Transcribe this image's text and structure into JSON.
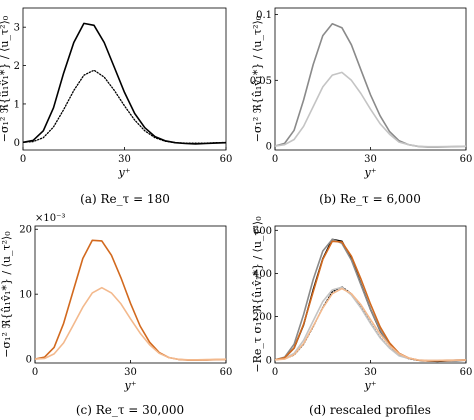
{
  "figure": {
    "x_axis_label": "y⁺",
    "y_axis_label_plain": "−σ₁² ℜ{û₁v̂₁*} / ⟨u_τ²⟩₀",
    "y_axis_label_scaled": "−Re_τ σ₁² ℜ{û₁v̂₁*} / ⟨u_τ²⟩₀"
  },
  "chart_data": [
    {
      "panel": "a",
      "type": "line",
      "caption": "(a) Re_τ = 180",
      "xlabel": "y⁺",
      "ylabel": "−σ₁² ℜ{û₁v̂₁*} / ⟨u_τ²⟩₀",
      "xlim": [
        0,
        60
      ],
      "ylim": [
        -0.2,
        3.5
      ],
      "xticks": [
        0,
        30,
        60
      ],
      "yticks": [
        0,
        1,
        2,
        3
      ],
      "scale_note": "",
      "series": [
        {
          "style": "solid",
          "color": "#000000",
          "x": [
            0,
            3,
            6,
            9,
            12,
            15,
            18,
            21,
            24,
            27,
            30,
            33,
            36,
            39,
            42,
            45,
            48,
            51,
            54,
            57,
            60
          ],
          "y": [
            0,
            0.05,
            0.3,
            0.9,
            1.8,
            2.6,
            3.1,
            3.05,
            2.6,
            1.95,
            1.3,
            0.75,
            0.38,
            0.15,
            0.04,
            -0.01,
            -0.03,
            -0.04,
            -0.03,
            -0.02,
            -0.01
          ]
        },
        {
          "style": "dotted",
          "color": "#000000",
          "x": [
            0,
            3,
            6,
            9,
            12,
            15,
            18,
            21,
            24,
            27,
            30,
            33,
            36,
            39,
            42,
            45,
            48,
            51,
            54,
            57,
            60
          ],
          "y": [
            0,
            0.02,
            0.12,
            0.4,
            0.85,
            1.35,
            1.75,
            1.88,
            1.7,
            1.35,
            0.95,
            0.58,
            0.3,
            0.12,
            0.03,
            -0.01,
            -0.02,
            -0.02,
            -0.02,
            -0.01,
            -0.005
          ]
        }
      ]
    },
    {
      "panel": "b",
      "type": "line",
      "caption": "(b) Re_τ = 6,000",
      "xlabel": "y⁺",
      "ylabel": "−σ₁² ℜ{û₁v̂₁*} / ⟨u_τ²⟩₀",
      "xlim": [
        0,
        60
      ],
      "ylim": [
        -0.003,
        0.105
      ],
      "xticks": [
        0,
        30,
        60
      ],
      "yticks": [
        0,
        0.05,
        0.1
      ],
      "ytick_labels": [
        "0",
        "0.05",
        "0.1"
      ],
      "scale_note": "",
      "series": [
        {
          "style": "solid",
          "color": "#8a8a8a",
          "x": [
            0,
            3,
            6,
            9,
            12,
            15,
            18,
            21,
            24,
            27,
            30,
            33,
            36,
            39,
            42,
            45,
            48,
            51,
            54,
            57,
            60
          ],
          "y": [
            0,
            0.002,
            0.012,
            0.035,
            0.062,
            0.084,
            0.093,
            0.09,
            0.077,
            0.058,
            0.039,
            0.023,
            0.011,
            0.004,
            0.001,
            -0.0003,
            -0.0008,
            -0.0008,
            -0.0006,
            -0.0004,
            -0.0002
          ]
        },
        {
          "style": "solid",
          "color": "#c4c4c4",
          "x": [
            0,
            3,
            6,
            9,
            12,
            15,
            18,
            21,
            24,
            27,
            30,
            33,
            36,
            39,
            42,
            45,
            48,
            51,
            54,
            57,
            60
          ],
          "y": [
            0,
            0.001,
            0.005,
            0.015,
            0.03,
            0.045,
            0.054,
            0.056,
            0.05,
            0.04,
            0.028,
            0.017,
            0.009,
            0.003,
            0.001,
            -0.0002,
            -0.0005,
            -0.0005,
            -0.0004,
            -0.0003,
            -0.0001
          ]
        }
      ]
    },
    {
      "panel": "c",
      "type": "line",
      "caption": "(c) Re_τ = 30,000",
      "xlabel": "y⁺",
      "ylabel": "−σ₁² ℜ{û₁v̂₁*} / ⟨u_τ²⟩₀",
      "xlim": [
        0,
        60
      ],
      "ylim": [
        -0.6,
        20.5
      ],
      "xticks": [
        0,
        30,
        60
      ],
      "yticks": [
        0,
        10,
        20
      ],
      "scale_note": "×10⁻³",
      "series": [
        {
          "style": "solid",
          "color": "#d2691e",
          "x": [
            0,
            3,
            6,
            9,
            12,
            15,
            18,
            21,
            24,
            27,
            30,
            33,
            36,
            39,
            42,
            45,
            48,
            51,
            54,
            57,
            60
          ],
          "y": [
            0,
            0.3,
            1.8,
            5.5,
            10.5,
            15.5,
            18.3,
            18.2,
            16,
            12.5,
            8.6,
            5.1,
            2.6,
            1,
            0.25,
            -0.05,
            -0.15,
            -0.15,
            -0.12,
            -0.08,
            -0.04
          ]
        },
        {
          "style": "solid",
          "color": "#f3b98d",
          "x": [
            0,
            3,
            6,
            9,
            12,
            15,
            18,
            21,
            24,
            27,
            30,
            33,
            36,
            39,
            42,
            45,
            48,
            51,
            54,
            57,
            60
          ],
          "y": [
            0,
            0.1,
            0.8,
            2.5,
            5.2,
            8,
            10.2,
            11,
            10.2,
            8.5,
            6.2,
            4,
            2.2,
            0.9,
            0.25,
            -0.03,
            -0.1,
            -0.1,
            -0.08,
            -0.05,
            -0.02
          ]
        }
      ]
    },
    {
      "panel": "d",
      "type": "line",
      "caption": "(d) rescaled profiles",
      "xlabel": "y⁺",
      "ylabel": "−Re_τ σ₁² ℜ{û₁v̂₁*} / ⟨u_τ²⟩₀",
      "xlim": [
        0,
        60
      ],
      "ylim": [
        -15,
        620
      ],
      "xticks": [
        0,
        30,
        60
      ],
      "yticks": [
        0,
        200,
        400,
        600
      ],
      "scale_note": "",
      "series": [
        {
          "style": "solid",
          "color": "#000000",
          "x": [
            0,
            3,
            6,
            9,
            12,
            15,
            18,
            21,
            24,
            27,
            30,
            33,
            36,
            39,
            42,
            45,
            48,
            51,
            54,
            57,
            60
          ],
          "y": [
            0,
            9,
            54,
            162,
            324,
            468,
            558,
            549,
            468,
            351,
            234,
            135,
            68,
            27,
            7,
            -2,
            -5,
            -7,
            -5,
            -4,
            -2
          ]
        },
        {
          "style": "dotted",
          "color": "#000000",
          "x": [
            0,
            3,
            6,
            9,
            12,
            15,
            18,
            21,
            24,
            27,
            30,
            33,
            36,
            39,
            42,
            45,
            48,
            51,
            54,
            57,
            60
          ],
          "y": [
            0,
            4,
            22,
            72,
            153,
            243,
            315,
            338,
            306,
            243,
            171,
            104,
            54,
            22,
            5,
            -2,
            -4,
            -4,
            -4,
            -2,
            -1
          ]
        },
        {
          "style": "solid",
          "color": "#8a8a8a",
          "x": [
            0,
            3,
            6,
            9,
            12,
            15,
            18,
            21,
            24,
            27,
            30,
            33,
            36,
            39,
            42,
            45,
            48,
            51,
            54,
            57,
            60
          ],
          "y": [
            0,
            12,
            72,
            210,
            372,
            504,
            558,
            540,
            462,
            348,
            234,
            138,
            66,
            24,
            6,
            -2,
            -5,
            -5,
            -4,
            -2,
            -1
          ]
        },
        {
          "style": "solid",
          "color": "#c4c4c4",
          "x": [
            0,
            3,
            6,
            9,
            12,
            15,
            18,
            21,
            24,
            27,
            30,
            33,
            36,
            39,
            42,
            45,
            48,
            51,
            54,
            57,
            60
          ],
          "y": [
            0,
            6,
            30,
            90,
            180,
            270,
            324,
            336,
            300,
            240,
            168,
            102,
            54,
            18,
            6,
            -1,
            -3,
            -3,
            -2,
            -2,
            -1
          ]
        },
        {
          "style": "solid",
          "color": "#d2691e",
          "x": [
            0,
            3,
            6,
            9,
            12,
            15,
            18,
            21,
            24,
            27,
            30,
            33,
            36,
            39,
            42,
            45,
            48,
            51,
            54,
            57,
            60
          ],
          "y": [
            0,
            9,
            54,
            165,
            315,
            465,
            549,
            546,
            480,
            375,
            258,
            153,
            78,
            30,
            8,
            -2,
            -5,
            -5,
            -4,
            -2,
            -1
          ]
        },
        {
          "style": "solid",
          "color": "#f3b98d",
          "x": [
            0,
            3,
            6,
            9,
            12,
            15,
            18,
            21,
            24,
            27,
            30,
            33,
            36,
            39,
            42,
            45,
            48,
            51,
            54,
            57,
            60
          ],
          "y": [
            0,
            3,
            24,
            75,
            156,
            240,
            306,
            330,
            306,
            255,
            186,
            120,
            66,
            27,
            8,
            -1,
            -3,
            -3,
            -2,
            -2,
            -1
          ]
        }
      ]
    }
  ]
}
